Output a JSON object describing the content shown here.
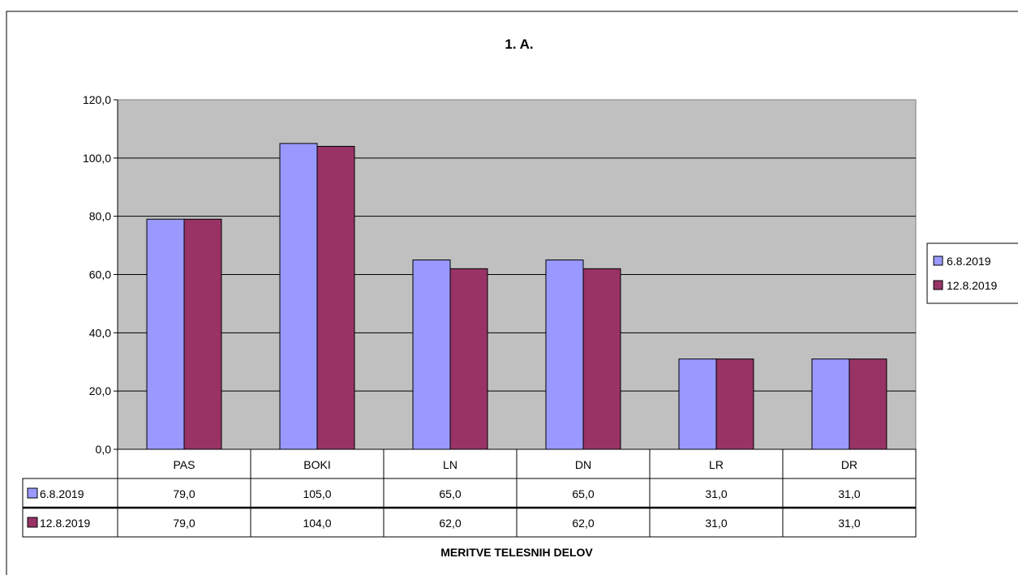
{
  "chart_data": {
    "type": "bar",
    "title": "1. A.",
    "xlabel": "MERITVE TELESNIH DELOV",
    "ylabel": "",
    "ylim": [
      0,
      120
    ],
    "yticks": [
      "0,0",
      "20,0",
      "40,0",
      "60,0",
      "80,0",
      "100,0",
      "120,0"
    ],
    "grid": true,
    "legend_position": "right",
    "categories": [
      "PAS",
      "BOKI",
      "LN",
      "DN",
      "LR",
      "DR"
    ],
    "series": [
      {
        "name": "6.8.2019",
        "color": "#9999ff",
        "values": [
          79,
          105,
          65,
          65,
          31,
          31
        ],
        "labels": [
          "79,0",
          "105,0",
          "65,0",
          "65,0",
          "31,0",
          "31,0"
        ]
      },
      {
        "name": "12.8.2019",
        "color": "#993366",
        "values": [
          79,
          104,
          62,
          62,
          31,
          31
        ],
        "labels": [
          "79,0",
          "104,0",
          "62,0",
          "62,0",
          "31,0",
          "31,0"
        ]
      }
    ],
    "plot_background": "#c0c0c0"
  }
}
